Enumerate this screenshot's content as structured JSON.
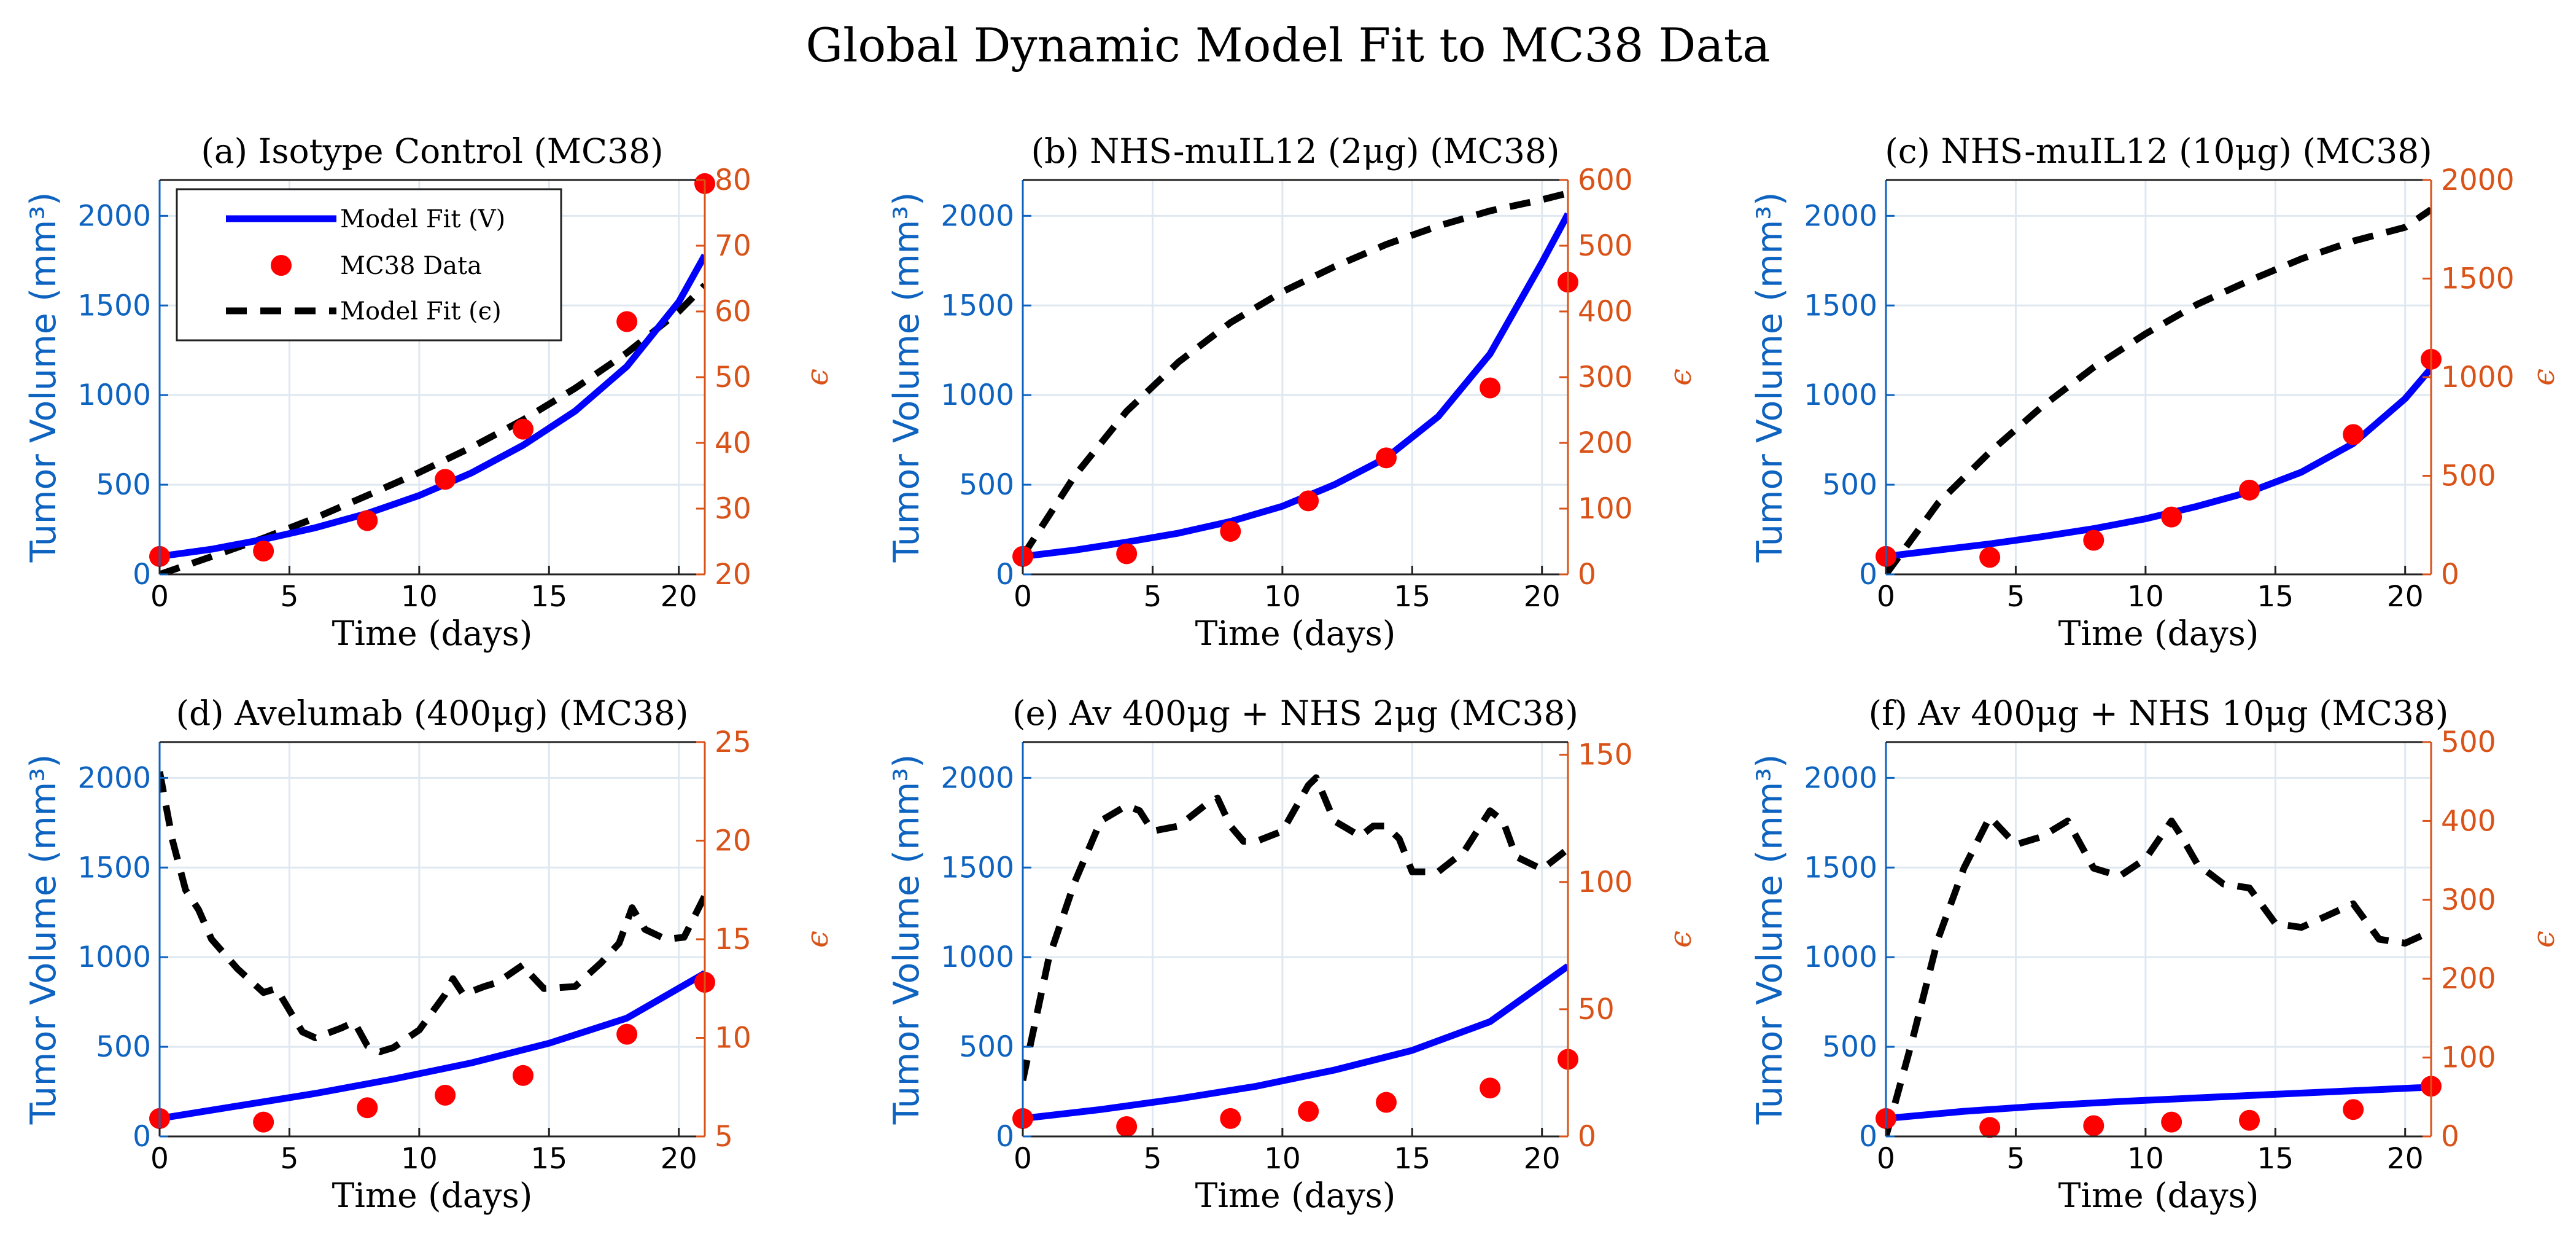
{
  "figure_title": "Global Dynamic Model Fit to MC38 Data",
  "colors": {
    "model_v": "#0000ff",
    "data": "#ff0000",
    "model_eps": "#000000",
    "left_axis": "#0d63bf",
    "right_axis": "#d95319",
    "grid": "#dfe8f0"
  },
  "legend": {
    "entries": [
      "Model Fit (V)",
      "MC38 Data",
      "Model Fit (ϵ)"
    ]
  },
  "chart_data": [
    {
      "type": "line",
      "title": "(a) Isotype Control (MC38)",
      "xlabel": "Time (days)",
      "ylabel": "Tumor Volume (mm³)",
      "y2label": "ϵ",
      "xlim": [
        0,
        21
      ],
      "xticks": [
        "0",
        "5",
        "10",
        "15",
        "20"
      ],
      "ylim": [
        0,
        2200
      ],
      "yticks": [
        "0",
        "500",
        "1000",
        "1500",
        "2000"
      ],
      "y2lim": [
        20,
        80
      ],
      "y2ticks": [
        "20",
        "30",
        "40",
        "50",
        "60",
        "70",
        "80"
      ],
      "data": {
        "x": [
          0,
          4,
          8,
          11,
          14,
          18,
          21
        ],
        "y": [
          100,
          130,
          300,
          530,
          810,
          1410,
          2180
        ]
      },
      "model_v": {
        "x": [
          0,
          2,
          4,
          6,
          8,
          10,
          12,
          14,
          16,
          18,
          20,
          21
        ],
        "y": [
          100,
          140,
          195,
          260,
          340,
          440,
          565,
          720,
          910,
          1160,
          1520,
          1780
        ]
      },
      "model_eps": {
        "x": [
          0,
          2,
          4,
          6,
          8,
          10,
          12,
          14,
          16,
          18,
          20,
          21
        ],
        "y": [
          20,
          22.7,
          25.5,
          28.6,
          32,
          35.5,
          39.3,
          43.5,
          48.3,
          53.7,
          60,
          64
        ]
      }
    },
    {
      "type": "line",
      "title": "(b) NHS-muIL12 (2μg) (MC38)",
      "xlabel": "Time (days)",
      "ylabel": "Tumor Volume (mm³)",
      "y2label": "ϵ",
      "xlim": [
        0,
        21
      ],
      "xticks": [
        "0",
        "5",
        "10",
        "15",
        "20"
      ],
      "ylim": [
        0,
        2200
      ],
      "yticks": [
        "0",
        "500",
        "1000",
        "1500",
        "2000"
      ],
      "y2lim": [
        0,
        600
      ],
      "y2ticks": [
        "0",
        "100",
        "200",
        "300",
        "400",
        "500",
        "600"
      ],
      "data": {
        "x": [
          0,
          4,
          8,
          11,
          14,
          18,
          21
        ],
        "y": [
          100,
          115,
          240,
          410,
          650,
          1040,
          1630
        ]
      },
      "model_v": {
        "x": [
          0,
          2,
          4,
          6,
          8,
          10,
          12,
          14,
          16,
          18,
          20,
          21
        ],
        "y": [
          100,
          135,
          180,
          230,
          295,
          380,
          500,
          650,
          880,
          1230,
          1740,
          2010
        ]
      },
      "model_eps": {
        "x": [
          0,
          2,
          4,
          6,
          8,
          10,
          12,
          14,
          16,
          18,
          20,
          21
        ],
        "y": [
          28,
          150,
          248,
          323,
          383,
          430,
          468,
          502,
          530,
          553,
          570,
          580
        ]
      }
    },
    {
      "type": "line",
      "title": "(c) NHS-muIL12 (10μg) (MC38)",
      "xlabel": "Time (days)",
      "ylabel": "Tumor Volume (mm³)",
      "y2label": "ϵ",
      "xlim": [
        0,
        21
      ],
      "xticks": [
        "0",
        "5",
        "10",
        "15",
        "20"
      ],
      "ylim": [
        0,
        2200
      ],
      "yticks": [
        "0",
        "500",
        "1000",
        "1500",
        "2000"
      ],
      "y2lim": [
        0,
        2000
      ],
      "y2ticks": [
        "0",
        "500",
        "1000",
        "1500",
        "2000"
      ],
      "data": {
        "x": [
          0,
          4,
          8,
          11,
          14,
          18,
          21
        ],
        "y": [
          100,
          95,
          190,
          320,
          470,
          780,
          1200
        ]
      },
      "model_v": {
        "x": [
          0,
          2,
          4,
          6,
          8,
          10,
          12,
          14,
          16,
          18,
          20,
          21
        ],
        "y": [
          100,
          135,
          170,
          210,
          255,
          310,
          380,
          460,
          570,
          730,
          980,
          1150
        ]
      },
      "model_eps": {
        "x": [
          0,
          2,
          4,
          6,
          8,
          10,
          12,
          14,
          16,
          18,
          20,
          21
        ],
        "y": [
          0,
          360,
          620,
          850,
          1050,
          1220,
          1370,
          1490,
          1600,
          1690,
          1760,
          1850
        ]
      }
    },
    {
      "type": "line",
      "title": "(d) Avelumab (400μg) (MC38)",
      "xlabel": "Time (days)",
      "ylabel": "Tumor Volume (mm³)",
      "y2label": "ϵ",
      "xlim": [
        0,
        21
      ],
      "xticks": [
        "0",
        "5",
        "10",
        "15",
        "20"
      ],
      "ylim": [
        0,
        2200
      ],
      "yticks": [
        "0",
        "500",
        "1000",
        "1500",
        "2000"
      ],
      "y2lim": [
        5,
        25
      ],
      "y2ticks": [
        "5",
        "10",
        "15",
        "20",
        "25"
      ],
      "data": {
        "x": [
          0,
          4,
          8,
          11,
          14,
          18,
          21
        ],
        "y": [
          100,
          80,
          160,
          230,
          340,
          570,
          860
        ]
      },
      "model_v": {
        "x": [
          0,
          3,
          6,
          9,
          12,
          15,
          18,
          21
        ],
        "y": [
          100,
          170,
          240,
          320,
          410,
          520,
          660,
          910
        ]
      },
      "model_eps": {
        "x": [
          0,
          0.5,
          1,
          1.5,
          2,
          3,
          4,
          4.5,
          5,
          5.5,
          6,
          7,
          7.5,
          8,
          8.5,
          9,
          10,
          11,
          11.3,
          11.7,
          12.5,
          13,
          14,
          14.3,
          14.8,
          16,
          17,
          17.7,
          18.2,
          18.7,
          19.5,
          20.2,
          21
        ],
        "y": [
          23.5,
          20,
          17.5,
          16.5,
          15,
          13.5,
          12.3,
          12.5,
          11.4,
          10.3,
          10,
          10.5,
          10.8,
          9.6,
          9.3,
          9.5,
          10.4,
          12.2,
          13,
          12.2,
          12.6,
          12.8,
          13.7,
          13.2,
          12.5,
          12.6,
          13.8,
          14.8,
          16.6,
          15.5,
          15,
          15.1,
          17.2
        ]
      }
    },
    {
      "type": "line",
      "title": "(e) Av 400μg + NHS 2μg (MC38)",
      "xlabel": "Time (days)",
      "ylabel": "Tumor Volume (mm³)",
      "y2label": "ϵ",
      "xlim": [
        0,
        21
      ],
      "xticks": [
        "0",
        "5",
        "10",
        "15",
        "20"
      ],
      "ylim": [
        0,
        2200
      ],
      "yticks": [
        "0",
        "500",
        "1000",
        "1500",
        "2000"
      ],
      "y2lim": [
        0,
        155
      ],
      "y2ticks": [
        "0",
        "50",
        "100",
        "150"
      ],
      "data": {
        "x": [
          0,
          4,
          8,
          11,
          14,
          18,
          21
        ],
        "y": [
          100,
          55,
          100,
          140,
          190,
          270,
          430
        ]
      },
      "model_v": {
        "x": [
          0,
          3,
          6,
          9,
          12,
          15,
          18,
          21
        ],
        "y": [
          100,
          150,
          210,
          280,
          370,
          480,
          640,
          950
        ]
      },
      "model_eps": {
        "x": [
          0,
          1,
          2,
          3,
          4,
          4.5,
          5,
          6,
          7,
          7.5,
          8,
          8.5,
          9,
          10,
          11,
          11.3,
          12,
          13,
          13.5,
          14,
          14.5,
          15,
          16,
          17,
          18,
          18.5,
          19,
          20,
          21
        ],
        "y": [
          22,
          70,
          100,
          124,
          130,
          128,
          120,
          122,
          130,
          133,
          122,
          116,
          116,
          120,
          138,
          141,
          124,
          118,
          122,
          122,
          117,
          104,
          104,
          112,
          128,
          124,
          110,
          105,
          113
        ]
      }
    },
    {
      "type": "line",
      "title": "(f) Av 400μg + NHS 10μg (MC38)",
      "xlabel": "Time (days)",
      "ylabel": "Tumor Volume (mm³)",
      "y2label": "ϵ",
      "xlim": [
        0,
        21
      ],
      "xticks": [
        "0",
        "5",
        "10",
        "15",
        "20"
      ],
      "ylim": [
        0,
        2200
      ],
      "yticks": [
        "0",
        "500",
        "1000",
        "1500",
        "2000"
      ],
      "y2lim": [
        0,
        500
      ],
      "y2ticks": [
        "0",
        "100",
        "200",
        "300",
        "400",
        "500"
      ],
      "data": {
        "x": [
          0,
          4,
          8,
          11,
          14,
          18,
          21
        ],
        "y": [
          100,
          50,
          60,
          80,
          90,
          150,
          280
        ]
      },
      "model_v": {
        "x": [
          0,
          3,
          6,
          9,
          12,
          15,
          18,
          21
        ],
        "y": [
          100,
          140,
          170,
          195,
          215,
          235,
          255,
          275
        ]
      },
      "model_eps": {
        "x": [
          0,
          1,
          2,
          3,
          4,
          5,
          6,
          7,
          8,
          9,
          10,
          11,
          11.3,
          12,
          13,
          14,
          15,
          16,
          17,
          18,
          19,
          20,
          21
        ],
        "y": [
          0,
          120,
          250,
          340,
          405,
          370,
          380,
          400,
          340,
          330,
          352,
          400,
          385,
          345,
          320,
          315,
          270,
          265,
          280,
          295,
          250,
          245,
          260
        ]
      }
    }
  ]
}
